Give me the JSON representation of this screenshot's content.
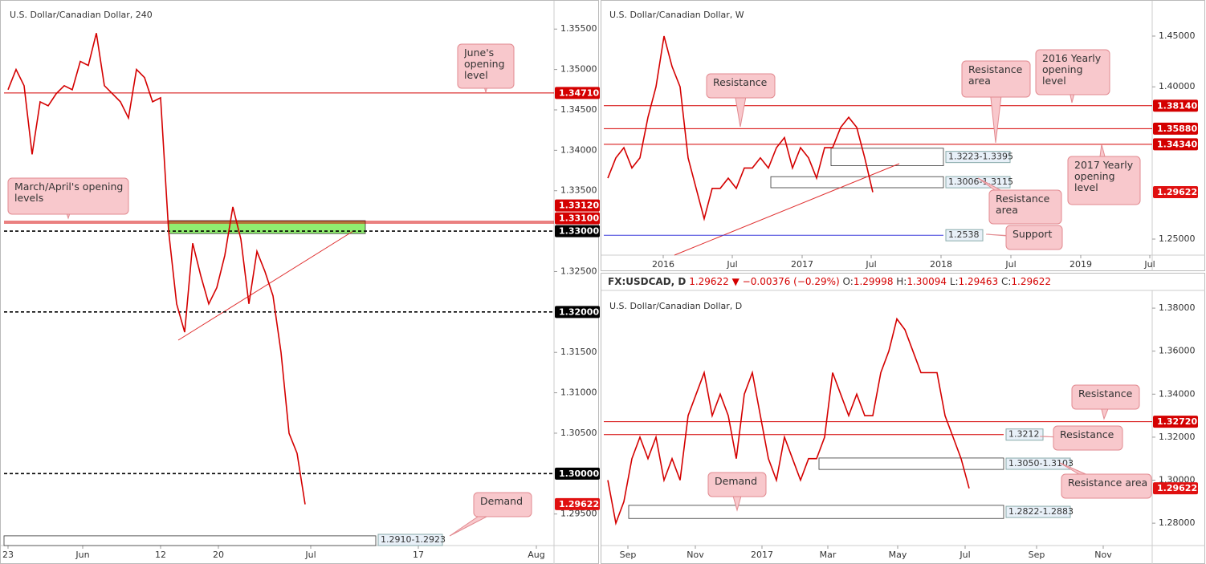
{
  "chart_data": [
    {
      "type": "line",
      "title": "U.S. Dollar/Canadian Dollar, 240",
      "color": "#d40000",
      "values": [
        1.3475,
        1.35,
        1.348,
        1.3395,
        1.346,
        1.3455,
        1.347,
        1.348,
        1.3475,
        1.351,
        1.3505,
        1.3545,
        1.348,
        1.347,
        1.346,
        1.344,
        1.35,
        1.349,
        1.346,
        1.3465,
        1.33,
        1.321,
        1.3175,
        1.3285,
        1.3245,
        1.321,
        1.323,
        1.327,
        1.333,
        1.329,
        1.321,
        1.3275,
        1.325,
        1.322,
        1.315,
        1.305,
        1.3025,
        1.2962
      ],
      "xlim": [
        -0.5,
        68
      ],
      "ylim": [
        1.2911,
        1.3581
      ],
      "xticks": [
        {
          "value": 0,
          "label": "23"
        },
        {
          "value": 9.3,
          "label": "Jun"
        },
        {
          "value": 19,
          "label": "12"
        },
        {
          "value": 26.2,
          "label": "20"
        },
        {
          "value": 37.7,
          "label": "Jul"
        },
        {
          "value": 51.1,
          "label": "17"
        },
        {
          "value": 65.8,
          "label": "Aug"
        }
      ],
      "yticks": [
        {
          "value": 1.355,
          "label": "1.35500"
        },
        {
          "value": 1.35,
          "label": "1.35000"
        },
        {
          "value": 1.345,
          "label": "1.34500"
        },
        {
          "value": 1.34,
          "label": "1.34000"
        },
        {
          "value": 1.335,
          "label": "1.33500"
        },
        {
          "value": 1.325,
          "label": "1.32500"
        },
        {
          "value": 1.315,
          "label": "1.31500"
        },
        {
          "value": 1.31,
          "label": "1.31000"
        },
        {
          "value": 1.305,
          "label": "1.30500"
        },
        {
          "value": 1.295,
          "label": "1.29500"
        }
      ],
      "levels": [
        {
          "value": 1.3471,
          "label": "1.34710",
          "color": "#d40000",
          "dashed": false,
          "badge": true
        },
        {
          "value": 1.3312,
          "label": "1.33120",
          "color": "#d40000",
          "dashed": false,
          "badge": true
        },
        {
          "value": 1.331,
          "label": "1.33100",
          "color": "#d40000",
          "dashed": false,
          "badge": true
        },
        {
          "value": 1.33,
          "label": "1.33000",
          "color": "#000000",
          "dashed": true,
          "badge": true
        },
        {
          "value": 1.32,
          "label": "1.32000",
          "color": "#000000",
          "dashed": true,
          "badge": true
        },
        {
          "value": 1.3,
          "label": "1.30000",
          "color": "#000000",
          "dashed": true,
          "badge": true
        }
      ],
      "zones": [
        {
          "low": 1.291,
          "high": 1.2923,
          "label": "1.2910-1.2923",
          "color": "#ffffff"
        },
        {
          "low": 1.3297,
          "high": 1.3313,
          "color": "#90ee70"
        }
      ],
      "last_price": {
        "value": 1.29622,
        "label": "1.29622"
      },
      "annotations": [
        "June's opening level",
        "March/April's opening levels",
        "Demand"
      ]
    },
    {
      "type": "line",
      "title": "U.S. Dollar/Canadian Dollar, W",
      "color": "#d40000",
      "values": [
        1.31,
        1.33,
        1.34,
        1.32,
        1.33,
        1.37,
        1.4,
        1.45,
        1.42,
        1.4,
        1.33,
        1.3,
        1.27,
        1.3,
        1.3,
        1.31,
        1.3,
        1.32,
        1.32,
        1.33,
        1.32,
        1.34,
        1.35,
        1.32,
        1.34,
        1.33,
        1.31,
        1.34,
        1.34,
        1.36,
        1.37,
        1.36,
        1.33,
        1.2962
      ],
      "xlim": [
        -0.5,
        67.8
      ],
      "ylim": [
        1.2342,
        1.4816
      ],
      "xticks": [
        {
          "value": 6.9,
          "label": "2016"
        },
        {
          "value": 15.5,
          "label": "Jul"
        },
        {
          "value": 24.2,
          "label": "2017"
        },
        {
          "value": 32.8,
          "label": "Jul"
        },
        {
          "value": 41.5,
          "label": "2018"
        },
        {
          "value": 50.2,
          "label": "Jul"
        },
        {
          "value": 58.9,
          "label": "2019"
        },
        {
          "value": 67.5,
          "label": "Jul"
        }
      ],
      "yticks": [
        {
          "value": 1.45,
          "label": "1.45000"
        },
        {
          "value": 1.4,
          "label": "1.40000"
        },
        {
          "value": 1.25,
          "label": "1.25000"
        }
      ],
      "levels": [
        {
          "value": 1.3814,
          "label": "1.38140",
          "color": "#d40000",
          "dashed": false,
          "badge": true
        },
        {
          "value": 1.3588,
          "label": "1.35880",
          "color": "#d40000",
          "dashed": false,
          "badge": true
        },
        {
          "value": 1.3434,
          "label": "1.34340",
          "color": "#d40000",
          "dashed": false,
          "badge": true
        },
        {
          "value": 1.2538,
          "label": "1.2538",
          "color": "#3b3bdb",
          "dashed": false,
          "badge": false
        }
      ],
      "zones": [
        {
          "low": 1.3223,
          "high": 1.3395,
          "label": "1.3223-1.3395",
          "color": "#ffffff"
        },
        {
          "low": 1.3006,
          "high": 1.3115,
          "label": "1.3006-1.3115",
          "color": "#ffffff"
        }
      ],
      "last_price": {
        "value": 1.29622,
        "label": "1.29622"
      },
      "annotations": [
        "Resistance",
        "Resistance area",
        "2016 Yearly opening level",
        "2017 Yearly opening level",
        "Resistance area",
        "Support"
      ]
    },
    {
      "type": "line",
      "title": "U.S. Dollar/Canadian Dollar, D",
      "color": "#d40000",
      "header": {
        "symbol": "FX:USDCAD, D",
        "price": "1.29622",
        "change": "▼ −0.00376 (−0.29%)",
        "open_label": "O:",
        "open": "1.29998",
        "high_label": "H:",
        "high": "1.30094",
        "low_label": "L:",
        "low": "1.29463",
        "close_label": "C:",
        "close": "1.29622"
      },
      "values": [
        1.3,
        1.28,
        1.29,
        1.31,
        1.32,
        1.31,
        1.32,
        1.3,
        1.31,
        1.3,
        1.33,
        1.34,
        1.35,
        1.33,
        1.34,
        1.33,
        1.31,
        1.34,
        1.35,
        1.33,
        1.31,
        1.3,
        1.32,
        1.31,
        1.3,
        1.31,
        1.31,
        1.32,
        1.35,
        1.34,
        1.33,
        1.34,
        1.33,
        1.33,
        1.35,
        1.36,
        1.375,
        1.37,
        1.36,
        1.35,
        1.35,
        1.35,
        1.33,
        1.32,
        1.31,
        1.2962
      ],
      "xlim": [
        -0.5,
        67.8
      ],
      "ylim": [
        1.2696,
        1.386
      ],
      "xticks": [
        {
          "value": 2.5,
          "label": "Sep"
        },
        {
          "value": 10.9,
          "label": "Nov"
        },
        {
          "value": 19.2,
          "label": "2017"
        },
        {
          "value": 27.4,
          "label": "Mar"
        },
        {
          "value": 36.1,
          "label": "May"
        },
        {
          "value": 44.5,
          "label": "Jul"
        },
        {
          "value": 53.4,
          "label": "Sep"
        },
        {
          "value": 61.7,
          "label": "Nov"
        }
      ],
      "yticks": [
        {
          "value": 1.38,
          "label": "1.38000"
        },
        {
          "value": 1.36,
          "label": "1.36000"
        },
        {
          "value": 1.34,
          "label": "1.34000"
        },
        {
          "value": 1.32,
          "label": "1.32000"
        },
        {
          "value": 1.3,
          "label": "1.30000"
        },
        {
          "value": 1.28,
          "label": "1.28000"
        }
      ],
      "levels": [
        {
          "value": 1.3272,
          "label": "1.32720",
          "color": "#d40000",
          "dashed": false,
          "badge": true
        },
        {
          "value": 1.3212,
          "label": "1.3212",
          "color": "#d40000",
          "dashed": false,
          "badge": false
        }
      ],
      "zones": [
        {
          "low": 1.305,
          "high": 1.3103,
          "label": "1.3050-1.3103",
          "color": "#ffffff"
        },
        {
          "low": 1.2822,
          "high": 1.2883,
          "label": "1.2822-1.2883",
          "color": "#ffffff"
        }
      ],
      "last_price": {
        "value": 1.29622,
        "label": "1.29622"
      },
      "annotations": [
        "Resistance",
        "Resistance",
        "Resistance area",
        "Demand"
      ]
    }
  ]
}
